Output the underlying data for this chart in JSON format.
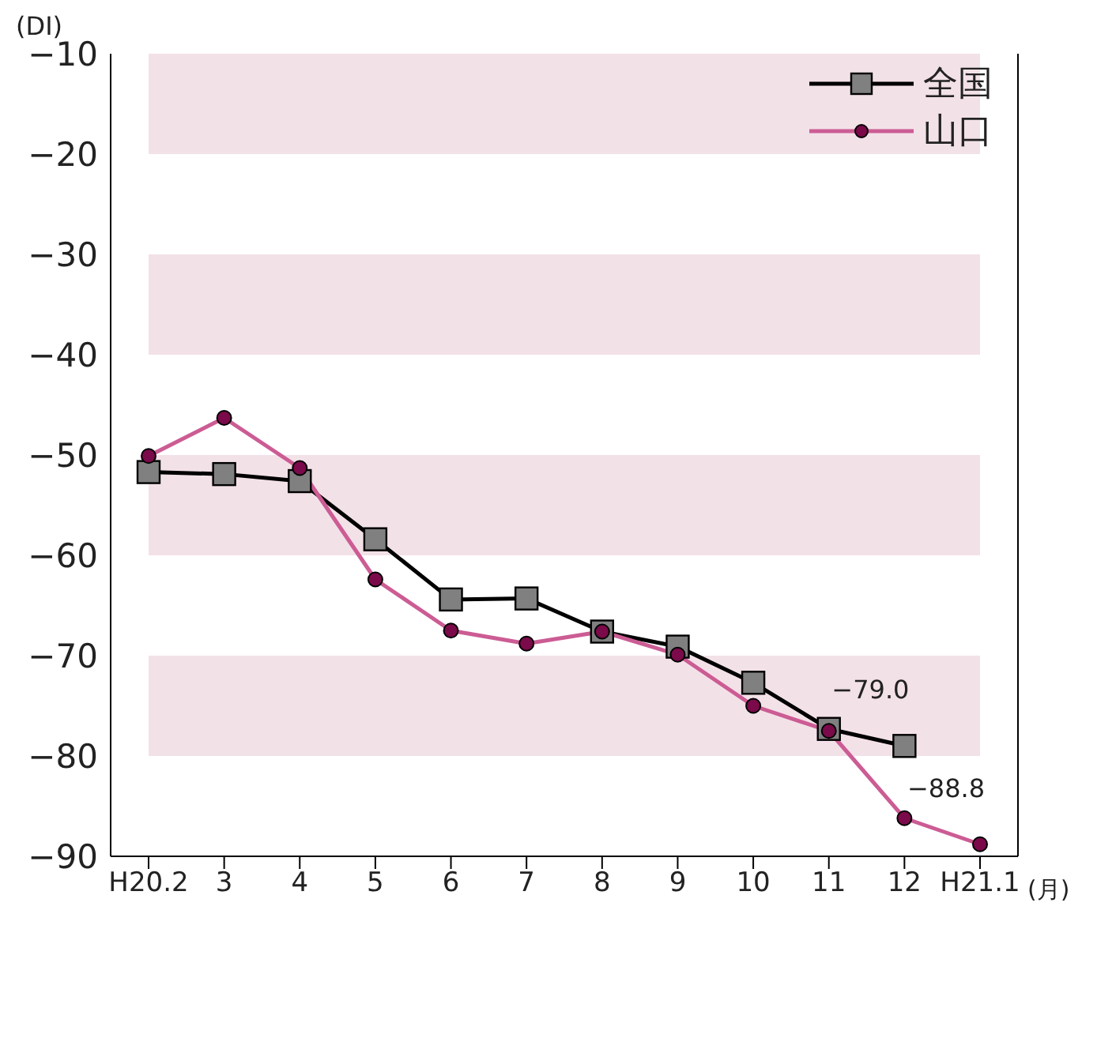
{
  "chart_data": {
    "type": "line",
    "ylabel": "(DI)",
    "xlabel": "(月)",
    "categories": [
      "H20.2",
      "3",
      "4",
      "5",
      "6",
      "7",
      "8",
      "9",
      "10",
      "11",
      "12",
      "H21.1"
    ],
    "series": [
      {
        "name": "全国",
        "color": "#000000",
        "marker": "square",
        "values": [
          -51.7,
          -51.9,
          -52.6,
          -58.4,
          -64.4,
          -64.3,
          -67.6,
          -69.1,
          -72.7,
          -77.3,
          -79.0,
          null
        ],
        "value_labels": [
          null,
          null,
          null,
          null,
          null,
          null,
          null,
          null,
          null,
          null,
          "−79.0",
          null
        ]
      },
      {
        "name": "山口",
        "color": "#cc5c94",
        "marker": "circle",
        "values": [
          -50.1,
          -46.3,
          -51.3,
          -62.4,
          -67.5,
          -68.8,
          -67.6,
          -69.9,
          -75.0,
          -77.5,
          -86.2,
          -88.8
        ],
        "value_labels": [
          null,
          null,
          null,
          null,
          null,
          null,
          null,
          null,
          null,
          null,
          null,
          "−88.8"
        ]
      }
    ],
    "ylim": [
      -90,
      -10
    ],
    "yticks": [
      {
        "value": -90,
        "label": "−90"
      },
      {
        "value": -80,
        "label": "−80"
      },
      {
        "value": -70,
        "label": "−70"
      },
      {
        "value": -60,
        "label": "−60"
      },
      {
        "value": -50,
        "label": "−50"
      },
      {
        "value": -40,
        "label": "−40"
      },
      {
        "value": -30,
        "label": "−30"
      },
      {
        "value": -20,
        "label": "−20"
      },
      {
        "value": -10,
        "label": "−10"
      }
    ],
    "bands": [
      {
        "axis": "y",
        "from": -20,
        "to": -10,
        "color": "#f3e1e8"
      },
      {
        "axis": "y",
        "from": -40,
        "to": -30,
        "color": "#f3e1e8"
      },
      {
        "axis": "y",
        "from": -60,
        "to": -50,
        "color": "#f3e1e8"
      },
      {
        "axis": "y",
        "from": -80,
        "to": -70,
        "color": "#f3e1e8"
      }
    ],
    "grid": false,
    "legend": "top right",
    "line_style": "solid"
  }
}
